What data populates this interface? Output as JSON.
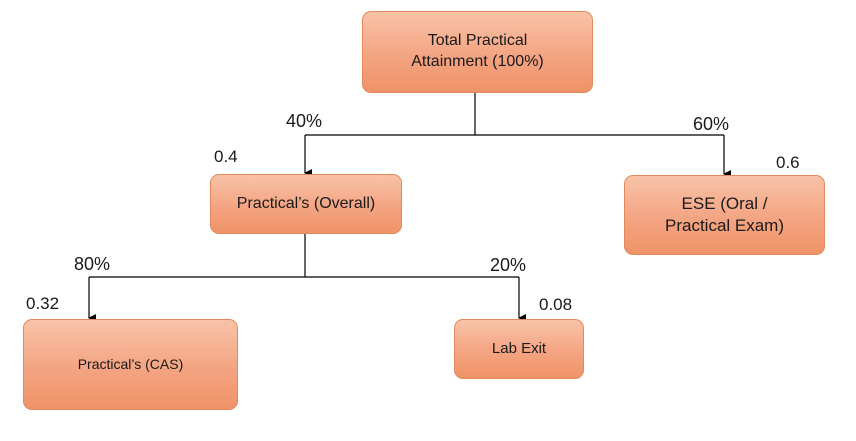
{
  "nodes": {
    "root": "Total Practical\nAttainment (100%)",
    "practical_overall": "Practical’s (Overall)",
    "ese": "ESE (Oral /\nPractical Exam)",
    "practical_cas": "Practical’s (CAS)",
    "lab_exit": "Lab Exit"
  },
  "edges": {
    "root_to_overall": {
      "percent": "40%",
      "weight": "0.4"
    },
    "root_to_ese": {
      "percent": "60%",
      "weight": "0.6"
    },
    "overall_to_cas": {
      "percent": "80%",
      "weight": "0.32"
    },
    "overall_to_lab_exit": {
      "percent": "20%",
      "weight": "0.08"
    }
  },
  "colors": {
    "node_fill_top": "#f8c3a8",
    "node_fill_bottom": "#ef9368",
    "node_border": "#e08a5a",
    "connector": "#000000"
  }
}
